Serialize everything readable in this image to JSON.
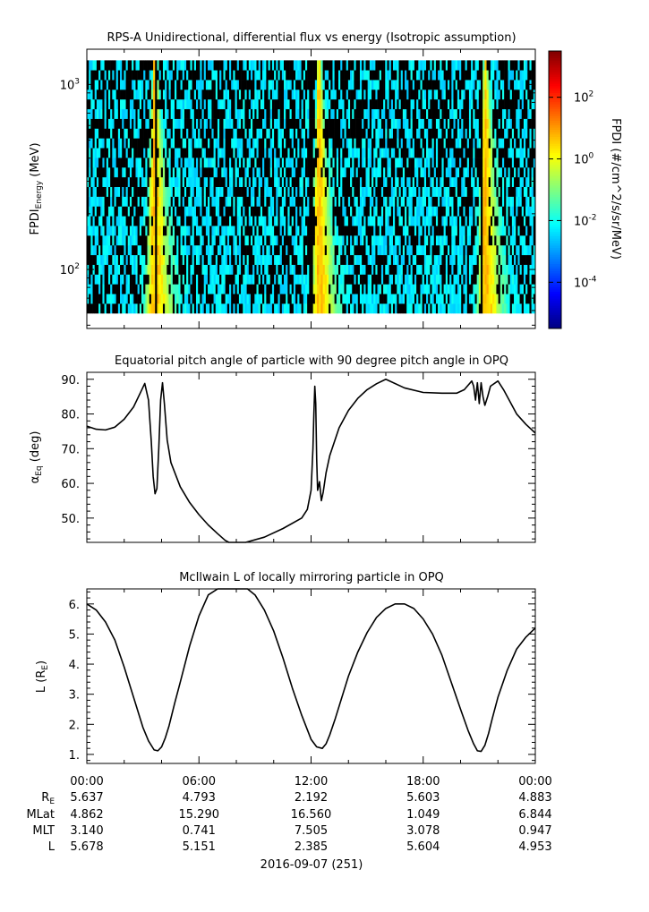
{
  "chart_data": [
    {
      "type": "heatmap",
      "title": "RPS-A Unidirectional, differential flux vs energy (Isotropic assumption)",
      "ylabel_main": "FPDI",
      "ylabel_sub": "Energy",
      "ylabel_unit": " (MeV)",
      "yscale": "log",
      "ylim": [
        48,
        1550
      ],
      "energy_range": [
        58,
        1350
      ],
      "ytick_values": [
        100,
        1000
      ],
      "ytick_base": "10",
      "ytick_exps": [
        "2",
        "3"
      ],
      "xlim": [
        0,
        24
      ],
      "colorbar_label": "FPDI (#/cm^2/s/sr/MeV)",
      "colorbar_scale": "log",
      "colorbar_range": [
        -5.5,
        3.5
      ],
      "colorbar_ticks": [
        -4,
        -2,
        0,
        2
      ],
      "colorbar_tick_base": "10",
      "colorbar_tick_exps": [
        "-4",
        "-2",
        "0",
        "2"
      ],
      "peaks": [
        {
          "t": 3.6,
          "dt_low": 0.4,
          "dt_high": 0.9
        },
        {
          "t": 12.4,
          "dt_low": 0.35,
          "dt_high": 0.8
        },
        {
          "t": 21.3,
          "dt_low": 0.35,
          "dt_high": 0.85
        }
      ],
      "gaps": [
        3.7,
        12.0,
        21.1
      ]
    },
    {
      "type": "line",
      "title": "Equatorial pitch angle of particle with 90 degree pitch angle in OPQ",
      "ylabel_main": "α",
      "ylabel_sub": "Eq",
      "ylabel_unit": " (deg)",
      "ylim": [
        43,
        92
      ],
      "xlim": [
        0,
        24
      ],
      "yticks": [
        50,
        60,
        70,
        80,
        90
      ],
      "ytick_labels": [
        "50.",
        "60.",
        "70.",
        "80.",
        "90."
      ],
      "x": [
        0,
        0.5,
        1.0,
        1.5,
        2.0,
        2.5,
        2.9,
        3.1,
        3.3,
        3.45,
        3.55,
        3.65,
        3.75,
        3.85,
        3.95,
        4.05,
        4.15,
        4.3,
        4.5,
        5.0,
        5.5,
        6.0,
        6.5,
        7.0,
        7.4,
        7.6,
        8.5,
        9.5,
        10.5,
        11.5,
        11.8,
        12.0,
        12.1,
        12.15,
        12.2,
        12.25,
        12.3,
        12.35,
        12.45,
        12.55,
        12.65,
        12.8,
        13.0,
        13.5,
        14.0,
        14.5,
        15.0,
        15.5,
        16.0,
        17.0,
        18.0,
        19.0,
        19.8,
        20.2,
        20.6,
        20.7,
        20.8,
        20.9,
        21.0,
        21.1,
        21.2,
        21.3,
        21.45,
        21.6,
        22.0,
        22.3,
        22.6,
        23.0,
        23.5,
        24.0
      ],
      "y": [
        76.5,
        75.6,
        75.4,
        76.2,
        78.5,
        82.0,
        86.5,
        88.8,
        84.0,
        72.0,
        62.0,
        57.0,
        58.5,
        70.0,
        84.0,
        89.0,
        83.0,
        72.5,
        66.0,
        59.0,
        54.5,
        51.0,
        48.0,
        45.5,
        43.6,
        42.8,
        42.5,
        44.5,
        47.0,
        50.0,
        52.5,
        58.0,
        70.0,
        80.0,
        88.0,
        83.0,
        67.0,
        58.0,
        60.5,
        55.0,
        57.5,
        63.0,
        68.0,
        76.0,
        81.0,
        84.5,
        87.0,
        88.7,
        90.0,
        87.5,
        86.2,
        86.0,
        86.0,
        87.0,
        89.5,
        88.0,
        84.0,
        89.0,
        83.0,
        89.0,
        85.0,
        82.5,
        85.0,
        88.0,
        89.5,
        87.0,
        84.0,
        80.0,
        77.0,
        74.5
      ]
    },
    {
      "type": "line",
      "title": "McIlwain L of locally mirroring particle in OPQ",
      "ylabel_main": "L (R",
      "ylabel_sub": "E",
      "ylabel_unit": ")",
      "ylim": [
        0.7,
        6.5
      ],
      "xlim": [
        0,
        24
      ],
      "yticks": [
        1,
        2,
        3,
        4,
        5,
        6
      ],
      "ytick_labels": [
        "1.",
        "2.",
        "3.",
        "4.",
        "5.",
        "6."
      ],
      "x": [
        0,
        0.5,
        1.0,
        1.5,
        2.0,
        2.5,
        3.0,
        3.3,
        3.6,
        3.8,
        4.0,
        4.2,
        4.4,
        4.7,
        5.0,
        5.5,
        6.0,
        6.5,
        7.0,
        7.5,
        7.8,
        8.6,
        9.0,
        9.5,
        10.0,
        10.5,
        11.0,
        11.5,
        12.0,
        12.3,
        12.6,
        12.8,
        13.0,
        13.3,
        13.6,
        14.0,
        14.5,
        15.0,
        15.5,
        16.0,
        16.5,
        17.0,
        17.5,
        18.0,
        18.5,
        19.0,
        19.5,
        20.0,
        20.4,
        20.7,
        20.9,
        21.1,
        21.3,
        21.5,
        21.7,
        22.0,
        22.5,
        23.0,
        23.5,
        24.0
      ],
      "y": [
        6.0,
        5.8,
        5.4,
        4.8,
        3.9,
        2.9,
        1.9,
        1.45,
        1.15,
        1.12,
        1.25,
        1.55,
        1.95,
        2.7,
        3.4,
        4.6,
        5.6,
        6.3,
        6.6,
        6.6,
        6.6,
        6.6,
        6.3,
        5.8,
        5.1,
        4.2,
        3.2,
        2.3,
        1.5,
        1.25,
        1.2,
        1.35,
        1.65,
        2.2,
        2.8,
        3.6,
        4.4,
        5.05,
        5.55,
        5.85,
        6.0,
        6.0,
        5.85,
        5.5,
        5.0,
        4.3,
        3.4,
        2.5,
        1.8,
        1.35,
        1.12,
        1.1,
        1.3,
        1.7,
        2.2,
        2.9,
        3.8,
        4.5,
        4.9,
        5.2
      ]
    }
  ],
  "time_axis": {
    "tick_labels": [
      "00:00",
      "06:00",
      "12:00",
      "18:00",
      "00:00"
    ],
    "row_labels": [
      "RE",
      "MLat",
      "MLT",
      "L"
    ],
    "rows": [
      [
        "5.637",
        "4.793",
        "2.192",
        "5.603",
        "4.883"
      ],
      [
        "4.862",
        "15.290",
        "16.560",
        "1.049",
        "6.844"
      ],
      [
        "3.140",
        "0.741",
        "7.505",
        "3.078",
        "0.947"
      ],
      [
        "5.678",
        "5.151",
        "2.385",
        "5.604",
        "4.953"
      ]
    ],
    "date_label": "2016-09-07 (251)"
  }
}
